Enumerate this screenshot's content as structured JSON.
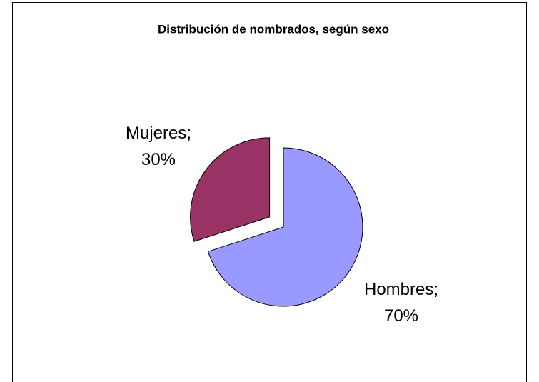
{
  "chart_data": {
    "type": "pie",
    "title": "Distribución de nombrados, según sexo",
    "values": [
      70,
      30
    ],
    "value_labels": [
      "Hombres; 70%",
      "Mujeres; 30%"
    ],
    "colors": [
      "#9999ff",
      "#993366"
    ],
    "explode": [
      false,
      true
    ]
  }
}
